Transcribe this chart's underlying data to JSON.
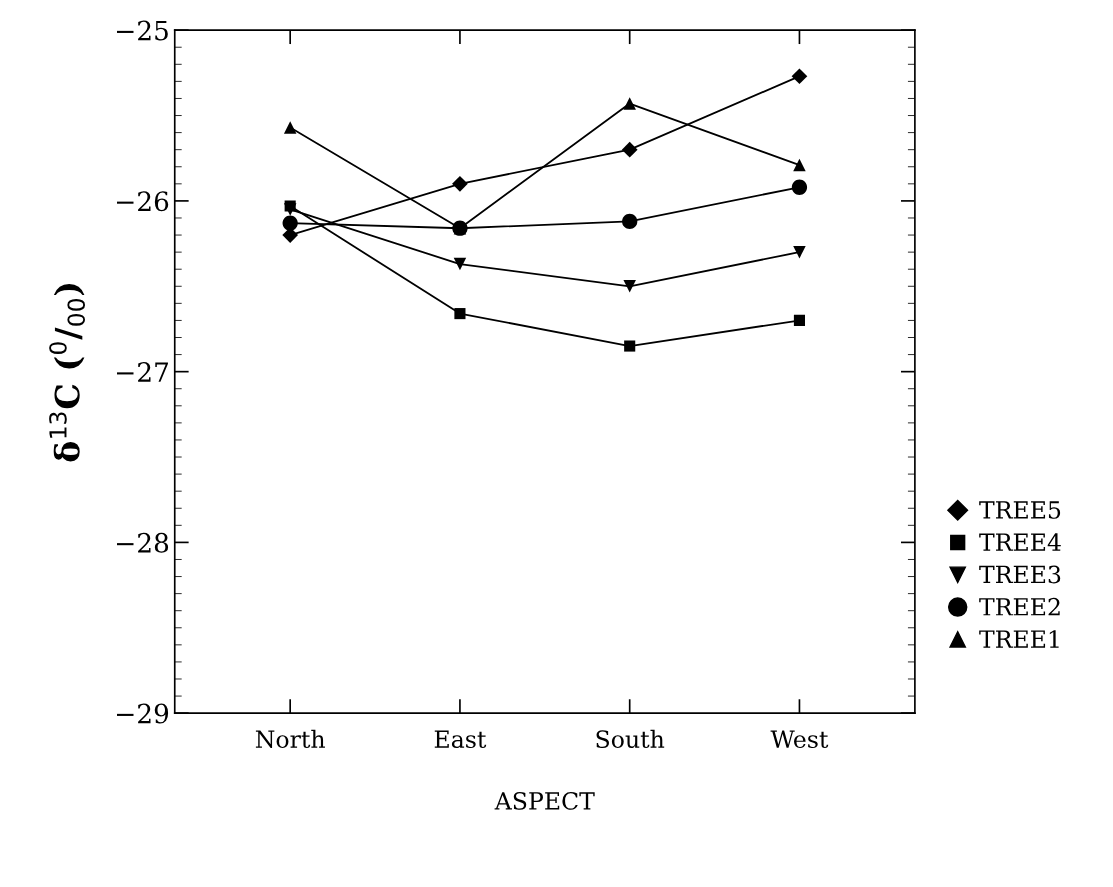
{
  "chart_data": {
    "type": "line",
    "xlabel": "ASPECT",
    "ylabel": "δ$^{13}$C ($^{0}$/$_{00}$)",
    "categories": [
      "North",
      "East",
      "South",
      "West"
    ],
    "ylim": [
      -29,
      -25
    ],
    "yticks": [
      {
        "value": -29,
        "label": "−29"
      },
      {
        "value": -28,
        "label": "−28"
      },
      {
        "value": -27,
        "label": "−27"
      },
      {
        "value": -26,
        "label": "−26"
      },
      {
        "value": -25,
        "label": "−25"
      }
    ],
    "grid": false,
    "legend": "right",
    "line_style": "solid",
    "series": [
      {
        "name": "TREE5",
        "color": "#000000",
        "marker": "diamond",
        "values": [
          -26.2,
          -25.9,
          -25.7,
          -25.27
        ]
      },
      {
        "name": "TREE4",
        "color": "#000000",
        "marker": "square",
        "values": [
          -26.03,
          -26.66,
          -26.85,
          -26.7
        ]
      },
      {
        "name": "TREE3",
        "color": "#000000",
        "marker": "triangle_down",
        "values": [
          -26.05,
          -26.37,
          -26.5,
          -26.3
        ]
      },
      {
        "name": "TREE2",
        "color": "#000000",
        "marker": "circle",
        "values": [
          -26.13,
          -26.16,
          -26.12,
          -25.92
        ]
      },
      {
        "name": "TREE1",
        "color": "#000000",
        "marker": "triangle",
        "values": [
          -25.57,
          -26.16,
          -25.43,
          -25.79
        ]
      }
    ]
  }
}
